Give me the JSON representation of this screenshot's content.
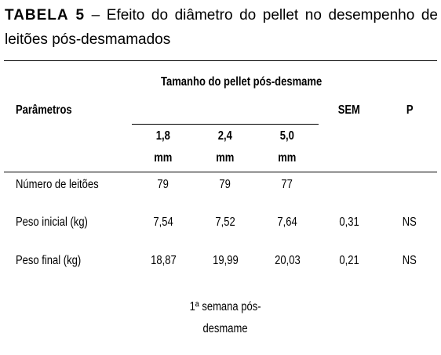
{
  "caption": {
    "label": "TABELA 5",
    "dash": "–",
    "text": "Efeito do diâmetro do pellet no desempenho de leitões pós-desmamados"
  },
  "table": {
    "group_header": "Tamanho do pellet pós-desmame",
    "param_header": "Parâmetros",
    "sem_header": "SEM",
    "p_header": "P",
    "columns": [
      {
        "size": "1,8",
        "unit": "mm"
      },
      {
        "size": "2,4",
        "unit": "mm"
      },
      {
        "size": "5,0",
        "unit": "mm"
      }
    ],
    "rows": [
      {
        "label": "Número de leitões",
        "values": [
          "79",
          "79",
          "77"
        ],
        "sem": "",
        "p": ""
      },
      {
        "label": "Peso inicial (kg)",
        "values": [
          "7,54",
          "7,52",
          "7,64"
        ],
        "sem": "0,31",
        "p": "NS"
      },
      {
        "label": "Peso final (kg)",
        "values": [
          "18,87",
          "19,99",
          "20,03"
        ],
        "sem": "0,21",
        "p": "NS"
      }
    ],
    "section_line1": "1ª semana pós-",
    "section_line2": "desmame"
  }
}
